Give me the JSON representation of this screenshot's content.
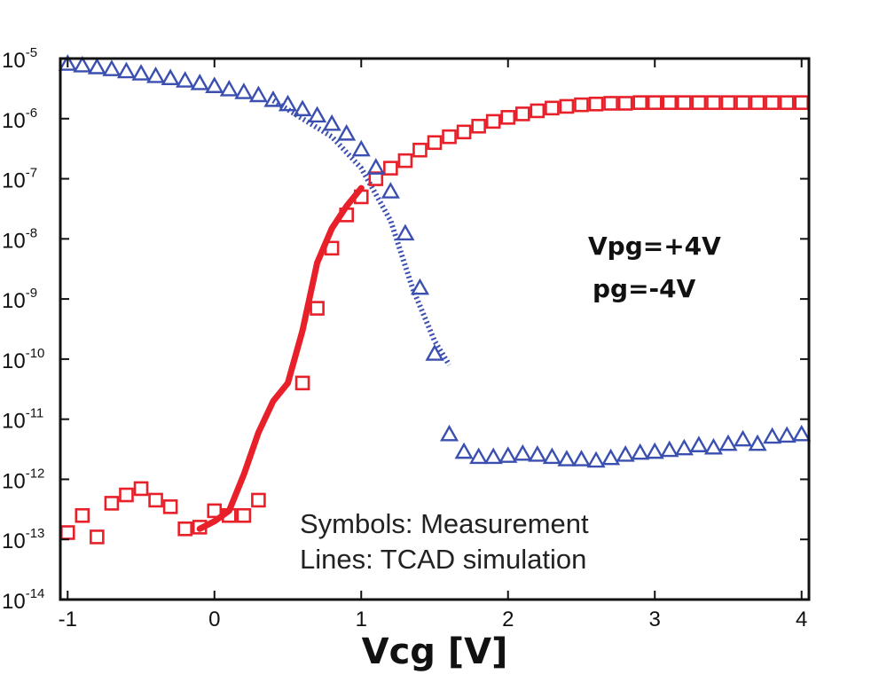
{
  "chart_data": {
    "type": "scatter",
    "title": "",
    "xlabel": "Vcg [V]",
    "ylabel": "",
    "xlim": [
      -1.05,
      4.05
    ],
    "ylim": [
      1e-14,
      1e-05
    ],
    "y_scale": "log",
    "x_ticks": [
      "-1",
      "0",
      "1",
      "2",
      "3",
      "4"
    ],
    "y_ticks": [
      {
        "base": "10",
        "exp": "-5"
      },
      {
        "base": "10",
        "exp": "-6"
      },
      {
        "base": "10",
        "exp": "-7"
      },
      {
        "base": "10",
        "exp": "-8"
      },
      {
        "base": "10",
        "exp": "-9"
      },
      {
        "base": "10",
        "exp": "-10"
      },
      {
        "base": "10",
        "exp": "-11"
      },
      {
        "base": "10",
        "exp": "-12"
      },
      {
        "base": "10",
        "exp": "-13"
      },
      {
        "base": "10",
        "exp": "-14"
      }
    ],
    "annotations": {
      "bias_1": "Vpg=+4V",
      "bias_2": "pg=-4V",
      "legend_1": "Symbols: Measurement",
      "legend_2": "Lines: TCAD simulation"
    },
    "colors": {
      "red": "#e8202a",
      "blue": "#3a4fb0"
    },
    "series": [
      {
        "color": "#e8202a",
        "marker": "square",
        "x": [
          -1.0,
          -0.9,
          -0.8,
          -0.7,
          -0.6,
          -0.5,
          -0.4,
          -0.3,
          -0.2,
          -0.1,
          0.0,
          0.1,
          0.2,
          0.3,
          0.6,
          0.7,
          0.8,
          0.9,
          1.0,
          1.1,
          1.2,
          1.3,
          1.4,
          1.5,
          1.6,
          1.7,
          1.8,
          1.9,
          2.0,
          2.1,
          2.2,
          2.3,
          2.4,
          2.5,
          2.6,
          2.7,
          2.8,
          2.9,
          3.0,
          3.1,
          3.2,
          3.3,
          3.4,
          3.5,
          3.6,
          3.7,
          3.8,
          3.9,
          4.0
        ],
        "y": [
          1.3e-13,
          2.5e-13,
          1.1e-13,
          4e-13,
          5.5e-13,
          7e-13,
          4.5e-13,
          3.5e-13,
          1.5e-13,
          1.6e-13,
          3e-13,
          2.5e-13,
          2.5e-13,
          4.5e-13,
          4e-11,
          7e-10,
          7e-09,
          2.5e-08,
          5e-08,
          1e-07,
          1.5e-07,
          2e-07,
          3e-07,
          4e-07,
          5e-07,
          6e-07,
          7.5e-07,
          9e-07,
          1.05e-06,
          1.2e-06,
          1.35e-06,
          1.5e-06,
          1.6e-06,
          1.7e-06,
          1.75e-06,
          1.8e-06,
          1.8e-06,
          1.85e-06,
          1.85e-06,
          1.85e-06,
          1.85e-06,
          1.85e-06,
          1.85e-06,
          1.85e-06,
          1.85e-06,
          1.85e-06,
          1.85e-06,
          1.85e-06,
          1.85e-06
        ]
      },
      {
        "color": "#3a4fb0",
        "marker": "triangle",
        "x": [
          -1.0,
          -0.9,
          -0.8,
          -0.7,
          -0.6,
          -0.5,
          -0.4,
          -0.3,
          -0.2,
          -0.1,
          0.0,
          0.1,
          0.2,
          0.3,
          0.4,
          0.5,
          0.6,
          0.7,
          0.8,
          0.9,
          1.0,
          1.1,
          1.2,
          1.3,
          1.4,
          1.5,
          1.6,
          1.7,
          1.8,
          1.9,
          2.0,
          2.1,
          2.2,
          2.3,
          2.4,
          2.5,
          2.6,
          2.7,
          2.8,
          2.9,
          3.0,
          3.1,
          3.2,
          3.3,
          3.4,
          3.5,
          3.6,
          3.7,
          3.8,
          3.9,
          4.0
        ],
        "y": [
          8e-06,
          7.5e-06,
          7e-06,
          6.5e-06,
          6e-06,
          5.5e-06,
          5e-06,
          4.6e-06,
          4.2e-06,
          3.8e-06,
          3.4e-06,
          3e-06,
          2.7e-06,
          2.4e-06,
          2e-06,
          1.7e-06,
          1.4e-06,
          1.1e-06,
          8e-07,
          5.5e-07,
          3e-07,
          1.5e-07,
          6e-08,
          1.2e-08,
          1.5e-09,
          1.2e-10,
          5.5e-12,
          2.8e-12,
          2.3e-12,
          2.3e-12,
          2.4e-12,
          2.6e-12,
          2.5e-12,
          2.3e-12,
          2.1e-12,
          2.1e-12,
          2e-12,
          2.2e-12,
          2.5e-12,
          2.7e-12,
          2.8e-12,
          3e-12,
          3.2e-12,
          3.6e-12,
          3.3e-12,
          3.8e-12,
          4.5e-12,
          3.8e-12,
          5e-12,
          5.2e-12,
          5.5e-12
        ]
      }
    ],
    "lines": [
      {
        "color": "#e8202a",
        "style": "solid",
        "x": [
          -0.1,
          0.0,
          0.1,
          0.2,
          0.3,
          0.4,
          0.5,
          0.6,
          0.7,
          0.8,
          0.9,
          1.0
        ],
        "y": [
          1.5e-13,
          2e-13,
          3e-13,
          1.2e-12,
          6e-12,
          2e-11,
          4e-11,
          3e-10,
          4e-09,
          1.5e-08,
          3.5e-08,
          7e-08
        ]
      },
      {
        "color": "#3a4fb0",
        "style": "dotted",
        "x": [
          0.4,
          0.6,
          0.8,
          1.0,
          1.2,
          1.35,
          1.5,
          1.6
        ],
        "y": [
          2e-06,
          1e-06,
          5e-07,
          1.5e-07,
          2e-08,
          1.5e-09,
          2e-10,
          8e-11
        ]
      }
    ]
  }
}
